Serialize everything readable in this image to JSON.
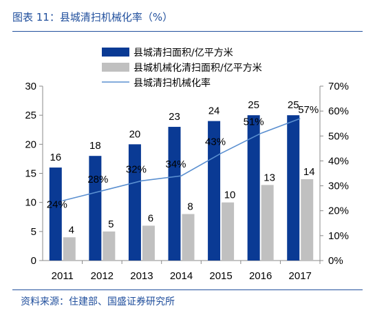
{
  "title": "图表 11：县城清扫机械化率（%）",
  "source": "资料来源：住建部、国盛证券研究所",
  "colors": {
    "bar1": "#0a3a94",
    "bar2": "#c0c0c0",
    "line": "#5a8fd0",
    "accent": "#1f4e9c"
  },
  "chart_data": {
    "type": "bar",
    "categories": [
      "2011",
      "2012",
      "2013",
      "2014",
      "2015",
      "2016",
      "2017"
    ],
    "series": [
      {
        "name": "县城清扫面积/亿平方米",
        "type": "bar",
        "axis": "left",
        "values": [
          16,
          18,
          20,
          23,
          24,
          25,
          25
        ]
      },
      {
        "name": "县城机械化清扫面积/亿平方米",
        "type": "bar",
        "axis": "left",
        "values": [
          4,
          5,
          6,
          8,
          10,
          13,
          14
        ]
      },
      {
        "name": "县城清扫机械化率",
        "type": "line",
        "axis": "right",
        "values": [
          24,
          28,
          32,
          34,
          43,
          51,
          57
        ]
      }
    ],
    "data_labels": {
      "bar1": [
        "16",
        "18",
        "20",
        "23",
        "24",
        "25",
        "25"
      ],
      "bar2": [
        "4",
        "5",
        "6",
        "8",
        "10",
        "13",
        "14"
      ],
      "line": [
        "24%",
        "28%",
        "32%",
        "34%",
        "43%",
        "51%",
        "57%"
      ]
    },
    "y_left": {
      "ylim": [
        0,
        30
      ],
      "ticks": [
        "0",
        "5",
        "10",
        "15",
        "20",
        "25",
        "30"
      ]
    },
    "y_right": {
      "ylim": [
        0,
        70
      ],
      "ticks": [
        "0%",
        "10%",
        "20%",
        "30%",
        "40%",
        "50%",
        "60%",
        "70%"
      ]
    },
    "legend_position": "top"
  }
}
